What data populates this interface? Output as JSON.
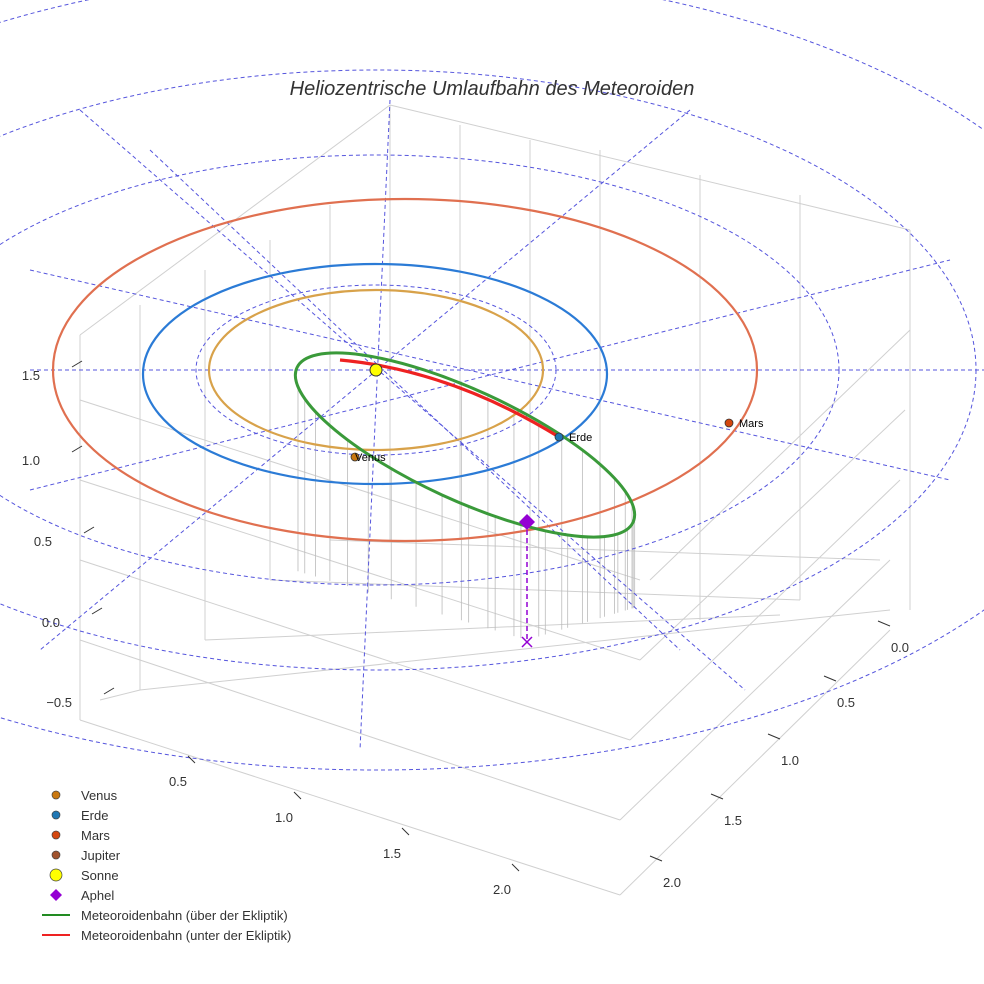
{
  "chart_data": {
    "type": "scatter3d",
    "title": "Heliozentrische Umlaufbahn des Meteoroiden",
    "z_ticks": [
      "1.5",
      "1.0",
      "0.5",
      "0.0",
      "−0.5"
    ],
    "x_ticks": [
      "0.5",
      "1.0",
      "1.5",
      "2.0"
    ],
    "y_ticks": [
      "0.0",
      "0.5",
      "1.0",
      "1.5",
      "2.0"
    ],
    "bodies": [
      {
        "name": "Venus",
        "label": "Venus",
        "color": "#c9770f"
      },
      {
        "name": "Erde",
        "label": "Erde",
        "color": "#1f77b4"
      },
      {
        "name": "Mars",
        "label": "Mars",
        "color": "#d4470f"
      },
      {
        "name": "Sonne",
        "color": "#ffff00"
      }
    ],
    "orbit_colors": {
      "venus": "#d8a24a",
      "erde": "#2b7bd6",
      "mars": "#e07050",
      "above": "#3a9a3a",
      "below": "#ee2222",
      "aphel": "#9400d3",
      "grid": "#4444dd"
    },
    "legend": [
      {
        "label": "Venus",
        "marker": "circle",
        "color": "#c9770f"
      },
      {
        "label": "Erde",
        "marker": "circle",
        "color": "#1f77b4"
      },
      {
        "label": "Mars",
        "marker": "circle",
        "color": "#d4470f"
      },
      {
        "label": "Jupiter",
        "marker": "circle",
        "color": "#a0522d"
      },
      {
        "label": "Sonne",
        "marker": "circle-big",
        "color": "#ffff00"
      },
      {
        "label": "Aphel",
        "marker": "diamond",
        "color": "#9400d3"
      },
      {
        "label": "Meteoroidenbahn (über der Ekliptik)",
        "marker": "line",
        "color": "#228b22"
      },
      {
        "label": "Meteoroidenbahn (unter der Ekliptik)",
        "marker": "line",
        "color": "#ee2222"
      }
    ]
  }
}
